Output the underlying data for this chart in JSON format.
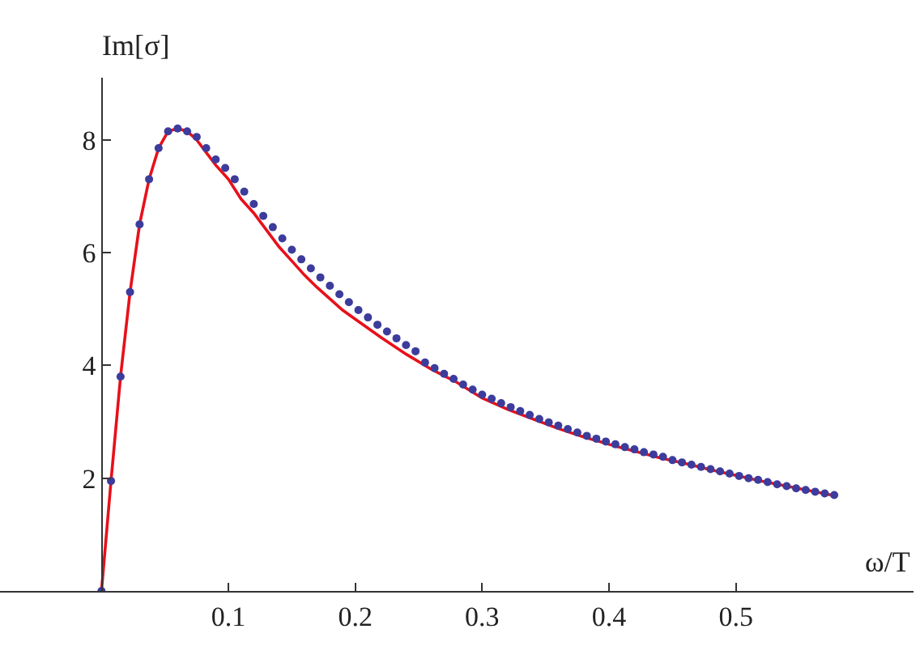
{
  "chart_data": {
    "type": "scatter",
    "xlabel": "ω/T",
    "ylabel": "Im[σ]",
    "xlim": [
      -0.08,
      0.64
    ],
    "ylim": [
      0,
      9.1
    ],
    "xticks": [
      0.1,
      0.2,
      0.3,
      0.4,
      0.5
    ],
    "yticks": [
      2,
      4,
      6,
      8
    ],
    "grid": false,
    "series": [
      {
        "color": "#3c3c9c",
        "marker": "circle",
        "x": [
          0,
          0.0075,
          0.015,
          0.0225,
          0.03,
          0.0375,
          0.045,
          0.0525,
          0.06,
          0.0675,
          0.075,
          0.0825,
          0.09,
          0.0975,
          0.105,
          0.1125,
          0.12,
          0.1275,
          0.135,
          0.1425,
          0.15,
          0.1575,
          0.165,
          0.1725,
          0.18,
          0.1875,
          0.195,
          0.2025,
          0.21,
          0.2175,
          0.225,
          0.2325,
          0.24,
          0.2475,
          0.255,
          0.2625,
          0.27,
          0.2775,
          0.285,
          0.2925,
          0.3,
          0.3075,
          0.315,
          0.3225,
          0.33,
          0.3375,
          0.345,
          0.3525,
          0.36,
          0.3675,
          0.375,
          0.3825,
          0.39,
          0.3975,
          0.405,
          0.4125,
          0.42,
          0.4275,
          0.435,
          0.4425,
          0.45,
          0.4575,
          0.465,
          0.4725,
          0.48,
          0.4875,
          0.495,
          0.5025,
          0.51,
          0.5175,
          0.525,
          0.5325,
          0.54,
          0.5475,
          0.555,
          0.5625,
          0.57,
          0.5775
        ],
        "values": [
          0,
          1.95,
          3.8,
          5.3,
          6.5,
          7.3,
          7.85,
          8.15,
          8.2,
          8.15,
          8.05,
          7.85,
          7.65,
          7.5,
          7.3,
          7.08,
          6.86,
          6.65,
          6.45,
          6.25,
          6.05,
          5.88,
          5.72,
          5.56,
          5.41,
          5.26,
          5.12,
          4.98,
          4.85,
          4.72,
          4.6,
          4.48,
          4.36,
          4.25,
          4.05,
          3.95,
          3.85,
          3.76,
          3.66,
          3.57,
          3.48,
          3.41,
          3.33,
          3.26,
          3.19,
          3.12,
          3.05,
          2.99,
          2.93,
          2.87,
          2.81,
          2.75,
          2.7,
          2.65,
          2.6,
          2.55,
          2.51,
          2.46,
          2.42,
          2.38,
          2.32,
          2.28,
          2.24,
          2.2,
          2.16,
          2.12,
          2.08,
          2.04,
          2.0,
          1.97,
          1.93,
          1.89,
          1.86,
          1.82,
          1.79,
          1.76,
          1.73,
          1.7
        ]
      },
      {
        "type": "line",
        "color": "#e8101a",
        "line_style": "solid",
        "x": [
          0,
          0.0075,
          0.015,
          0.0225,
          0.03,
          0.0375,
          0.045,
          0.0525,
          0.06,
          0.0675,
          0.075,
          0.09,
          0.1,
          0.11,
          0.12,
          0.13,
          0.14,
          0.15,
          0.16,
          0.17,
          0.18,
          0.19,
          0.2,
          0.22,
          0.24,
          0.26,
          0.28,
          0.3,
          0.32,
          0.34,
          0.36,
          0.38,
          0.4,
          0.42,
          0.44,
          0.46,
          0.48,
          0.5,
          0.52,
          0.54,
          0.56,
          0.58
        ],
        "values": [
          0,
          1.95,
          3.8,
          5.3,
          6.5,
          7.3,
          7.85,
          8.15,
          8.2,
          8.15,
          8.0,
          7.55,
          7.3,
          6.95,
          6.7,
          6.4,
          6.1,
          5.85,
          5.6,
          5.38,
          5.18,
          4.98,
          4.82,
          4.5,
          4.2,
          3.93,
          3.7,
          3.42,
          3.22,
          3.05,
          2.88,
          2.73,
          2.6,
          2.48,
          2.36,
          2.26,
          2.15,
          2.05,
          1.95,
          1.86,
          1.77,
          1.68
        ]
      }
    ]
  }
}
